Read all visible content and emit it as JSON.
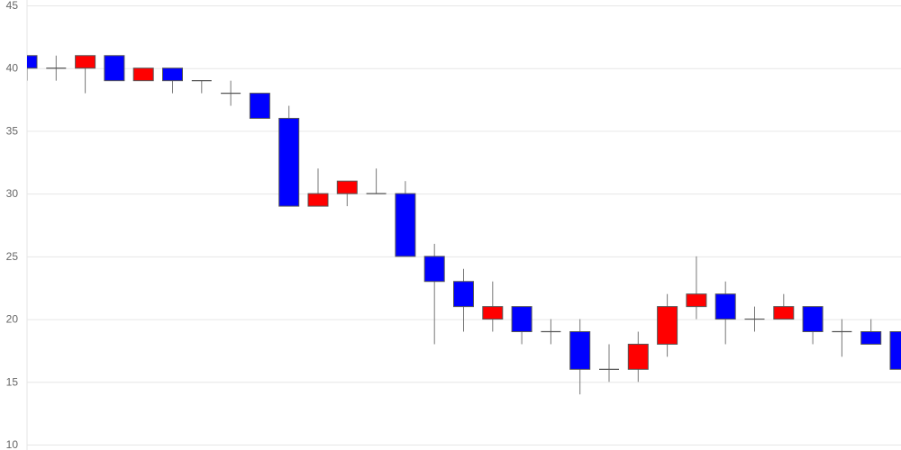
{
  "chart_data": {
    "type": "candlestick",
    "title": "",
    "xlabel": "",
    "ylabel": "",
    "ylim": [
      10,
      45
    ],
    "y_ticks": [
      "10",
      "15",
      "20",
      "25",
      "30",
      "35",
      "40",
      "45"
    ],
    "grid": true,
    "colors": {
      "up": "#ff0000",
      "down": "#0000ff",
      "wick": "#777777",
      "grid": "#e6e6e6",
      "border": "#555555"
    },
    "candles": [
      {
        "o": 41,
        "h": 41,
        "l": 39,
        "c": 40
      },
      {
        "o": 40,
        "h": 41,
        "l": 39,
        "c": 40
      },
      {
        "o": 40,
        "h": 41,
        "l": 38,
        "c": 41
      },
      {
        "o": 41,
        "h": 41,
        "l": 39,
        "c": 39
      },
      {
        "o": 39,
        "h": 40,
        "l": 39,
        "c": 40
      },
      {
        "o": 40,
        "h": 40,
        "l": 38,
        "c": 39
      },
      {
        "o": 39,
        "h": 39,
        "l": 38,
        "c": 39
      },
      {
        "o": 38,
        "h": 39,
        "l": 37,
        "c": 38
      },
      {
        "o": 38,
        "h": 38,
        "l": 36,
        "c": 36
      },
      {
        "o": 36,
        "h": 37,
        "l": 29,
        "c": 29
      },
      {
        "o": 29,
        "h": 32,
        "l": 29,
        "c": 30
      },
      {
        "o": 30,
        "h": 31,
        "l": 29,
        "c": 31
      },
      {
        "o": 30,
        "h": 32,
        "l": 30,
        "c": 30
      },
      {
        "o": 30,
        "h": 31,
        "l": 25,
        "c": 25
      },
      {
        "o": 25,
        "h": 26,
        "l": 18,
        "c": 23
      },
      {
        "o": 23,
        "h": 24,
        "l": 19,
        "c": 21
      },
      {
        "o": 20,
        "h": 23,
        "l": 19,
        "c": 21
      },
      {
        "o": 21,
        "h": 21,
        "l": 18,
        "c": 19
      },
      {
        "o": 19,
        "h": 20,
        "l": 18,
        "c": 19
      },
      {
        "o": 19,
        "h": 20,
        "l": 14,
        "c": 16
      },
      {
        "o": 16,
        "h": 18,
        "l": 15,
        "c": 16
      },
      {
        "o": 16,
        "h": 19,
        "l": 15,
        "c": 18
      },
      {
        "o": 18,
        "h": 22,
        "l": 17,
        "c": 21
      },
      {
        "o": 21,
        "h": 25,
        "l": 20,
        "c": 22
      },
      {
        "o": 22,
        "h": 23,
        "l": 18,
        "c": 20
      },
      {
        "o": 20,
        "h": 21,
        "l": 19,
        "c": 20
      },
      {
        "o": 20,
        "h": 22,
        "l": 20,
        "c": 21
      },
      {
        "o": 21,
        "h": 21,
        "l": 18,
        "c": 19
      },
      {
        "o": 19,
        "h": 20,
        "l": 17,
        "c": 19
      },
      {
        "o": 19,
        "h": 20,
        "l": 18,
        "c": 18
      },
      {
        "o": 19,
        "h": 19,
        "l": 16,
        "c": 16
      }
    ]
  }
}
